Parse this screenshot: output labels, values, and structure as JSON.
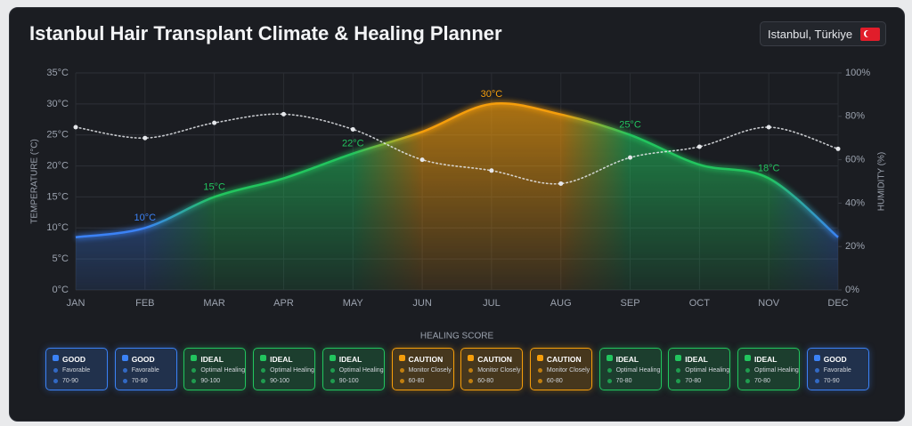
{
  "chart_data": {
    "type": "line",
    "title": "Istanbul Hair Transplant Climate & Healing Planner",
    "categories": [
      "JAN",
      "FEB",
      "MAR",
      "APR",
      "MAY",
      "JUN",
      "JUL",
      "AUG",
      "SEP",
      "OCT",
      "NOV",
      "DEC"
    ],
    "ylabel": "TEMPERATURE (°C)",
    "y2label": "HUMIDITY (%)",
    "ylim": [
      0,
      35
    ],
    "yticks": [
      {
        "value": 0,
        "label": "0°C"
      },
      {
        "value": 5,
        "label": "5°C"
      },
      {
        "value": 10,
        "label": "10°C"
      },
      {
        "value": 15,
        "label": "15°C"
      },
      {
        "value": 20,
        "label": "20°C"
      },
      {
        "value": 25,
        "label": "25°C"
      },
      {
        "value": 30,
        "label": "30°C"
      },
      {
        "value": 35,
        "label": "35°C"
      }
    ],
    "y2lim": [
      0,
      100
    ],
    "y2ticks": [
      {
        "value": 0,
        "label": "0%"
      },
      {
        "value": 20,
        "label": "20%"
      },
      {
        "value": 40,
        "label": "40%"
      },
      {
        "value": 60,
        "label": "60%"
      },
      {
        "value": 80,
        "label": "80%"
      },
      {
        "value": 100,
        "label": "100%"
      }
    ],
    "grid": true,
    "series": [
      {
        "colors": [
          "#3b82f6",
          "#3b82f6",
          "#22c55e",
          "#22c55e",
          "#22c55e",
          "#f59e0b",
          "#f59e0b",
          "#f59e0b",
          "#22c55e",
          "#22c55e",
          "#22c55e",
          "#3b82f6"
        ],
        "values": [
          8.5,
          10,
          15,
          18,
          22,
          25.5,
          30,
          28.3,
          25,
          20.2,
          18,
          8.5
        ],
        "value_labels": [
          null,
          "10°C",
          "15°C",
          null,
          "22°C",
          null,
          "30°C",
          null,
          "25°C",
          null,
          "18°C",
          null
        ]
      },
      {
        "color": "#e5e7eb",
        "axis": "y2",
        "style": "dotted",
        "values": [
          75,
          70,
          77,
          81,
          74,
          60,
          55,
          49,
          61,
          66,
          75,
          65
        ]
      }
    ]
  },
  "location": "Istanbul, Türkiye",
  "healing_score": {
    "title": "HEALING SCORE",
    "cards": [
      {
        "status": "GOOD",
        "description": "Favorable",
        "range": "70-90"
      },
      {
        "status": "GOOD",
        "description": "Favorable",
        "range": "70-90"
      },
      {
        "status": "IDEAL",
        "description": "Optimal Healing",
        "range": "90-100"
      },
      {
        "status": "IDEAL",
        "description": "Optimal Healing",
        "range": "90-100"
      },
      {
        "status": "IDEAL",
        "description": "Optimal Healing",
        "range": "90-100"
      },
      {
        "status": "CAUTION",
        "description": "Monitor Closely",
        "range": "60-80"
      },
      {
        "status": "CAUTION",
        "description": "Monitor Closely",
        "range": "60-80"
      },
      {
        "status": "CAUTION",
        "description": "Monitor Closely",
        "range": "60-80"
      },
      {
        "status": "IDEAL",
        "description": "Optimal Healing",
        "range": "70-80"
      },
      {
        "status": "IDEAL",
        "description": "Optimal Healing",
        "range": "70-80"
      },
      {
        "status": "IDEAL",
        "description": "Optimal Healing",
        "range": "70-80"
      },
      {
        "status": "GOOD",
        "description": "Favorable",
        "range": "70-90"
      }
    ]
  }
}
